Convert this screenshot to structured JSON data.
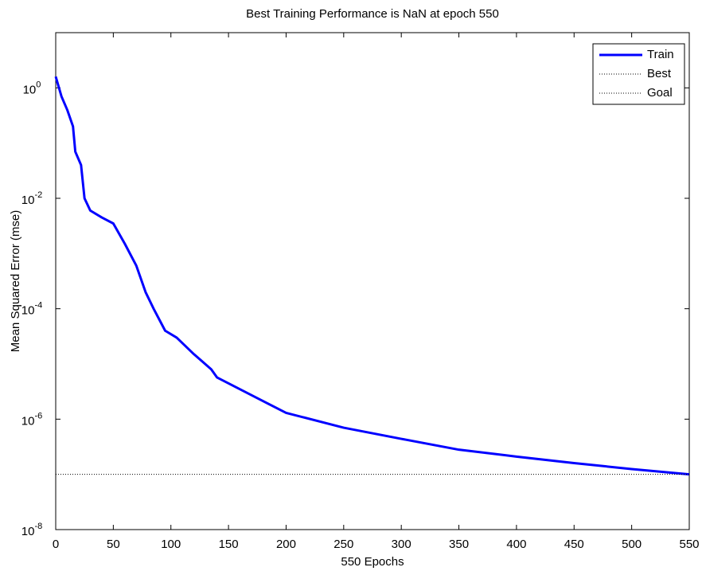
{
  "chart_data": {
    "type": "line",
    "title": "Best Training Performance is NaN at epoch 550",
    "x_label": "550 Epochs",
    "y_label": "Mean Squared Error  (mse)",
    "log_y": true,
    "grid": false,
    "legend": "top-right",
    "x": [
      0,
      5,
      10,
      15,
      17,
      22,
      25,
      30,
      40,
      50,
      60,
      70,
      78,
      85,
      95,
      105,
      120,
      135,
      140,
      175,
      200,
      250,
      300,
      350,
      400,
      450,
      500,
      550
    ],
    "series": [
      {
        "name": "Train",
        "color": "#0000ff",
        "style": "solid",
        "values": [
          1.6,
          0.7,
          0.4,
          0.2,
          0.07,
          0.04,
          0.01,
          0.006,
          0.0045,
          0.0035,
          0.0015,
          0.0006,
          0.0002,
          0.0001,
          4e-05,
          3e-05,
          1.5e-05,
          8e-06,
          5.7e-06,
          2.4e-06,
          1.3e-06,
          7e-07,
          4.4e-07,
          2.8e-07,
          2.1e-07,
          1.6e-07,
          1.25e-07,
          1e-07
        ]
      },
      {
        "name": "Best",
        "color": "#000000",
        "style": "dotted",
        "values": [
          null,
          null,
          null,
          null,
          null,
          null,
          null,
          null,
          null,
          null,
          null,
          null,
          null,
          null,
          null,
          null,
          null,
          null,
          null,
          null,
          null,
          null,
          null,
          null,
          null,
          null,
          null,
          null
        ]
      },
      {
        "name": "Goal",
        "color": "#000000",
        "style": "dotted",
        "values": [
          1e-07,
          1e-07,
          1e-07,
          1e-07,
          1e-07,
          1e-07,
          1e-07,
          1e-07,
          1e-07,
          1e-07,
          1e-07,
          1e-07,
          1e-07,
          1e-07,
          1e-07,
          1e-07,
          1e-07,
          1e-07,
          1e-07,
          1e-07,
          1e-07,
          1e-07,
          1e-07,
          1e-07,
          1e-07,
          1e-07,
          1e-07,
          1e-07
        ]
      }
    ],
    "xlim": [
      0,
      550
    ],
    "xticks": [
      0,
      50,
      100,
      150,
      200,
      250,
      300,
      350,
      400,
      450,
      500,
      550
    ],
    "ylim": [
      1e-08,
      10
    ],
    "yticks": [
      {
        "value": 1e-08,
        "base": "10",
        "exponent": "-8"
      },
      {
        "value": 1e-06,
        "base": "10",
        "exponent": "-6"
      },
      {
        "value": 0.0001,
        "base": "10",
        "exponent": "-4"
      },
      {
        "value": 0.01,
        "base": "10",
        "exponent": "-2"
      },
      {
        "value": 1,
        "base": "10",
        "exponent": "0"
      }
    ]
  }
}
